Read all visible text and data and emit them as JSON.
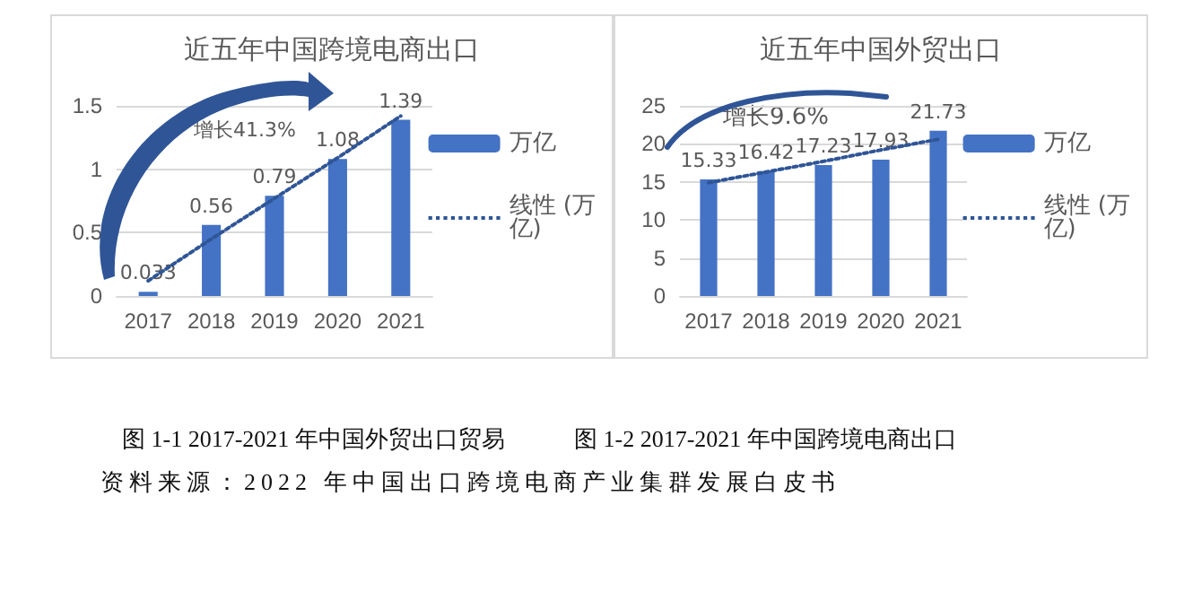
{
  "chart_data": [
    {
      "type": "bar",
      "title": "近五年中国跨境电商出口",
      "categories": [
        "2017",
        "2018",
        "2019",
        "2020",
        "2021"
      ],
      "series": [
        {
          "name": "万亿",
          "color": "#4472c4",
          "values": [
            0.033,
            0.56,
            0.79,
            1.08,
            1.39
          ],
          "value_labels": [
            "0.033",
            "0.56",
            "0.79",
            "1.08",
            "1.39"
          ]
        },
        {
          "name": "线性 (万亿)",
          "type": "line",
          "color": "#2f5597",
          "values": [
            0.12,
            0.45,
            0.77,
            1.09,
            1.42
          ],
          "line_style": "dotted",
          "marker": "none"
        }
      ],
      "ylim": [
        0,
        1.5
      ],
      "yticks": [
        0,
        0.5,
        1,
        1.5
      ],
      "grid": "y",
      "legend": "right",
      "annotations": [
        "增长41.3%",
        "图 1-1 2017-2021 年中国外贸出口贸易",
        "资料来源：2022 年中国出口跨境电商产业集群发展白皮书"
      ]
    },
    {
      "type": "bar",
      "title": "近五年中国外贸出口",
      "categories": [
        "2017",
        "2018",
        "2019",
        "2020",
        "2021"
      ],
      "series": [
        {
          "name": "万亿",
          "color": "#4472c4",
          "values": [
            15.33,
            16.42,
            17.23,
            17.93,
            21.73
          ],
          "value_labels": [
            "15.33",
            "16.42",
            "17.23",
            "17.93",
            "21.73"
          ]
        },
        {
          "name": "线性 (万亿)",
          "type": "line",
          "color": "#2f5597",
          "values": [
            14.9,
            16.3,
            17.7,
            19.2,
            20.6
          ],
          "line_style": "dotted",
          "marker": "none"
        }
      ],
      "ylim": [
        0,
        25
      ],
      "yticks": [
        0,
        5,
        10,
        15,
        20,
        25
      ],
      "grid": "y",
      "legend": "right",
      "annotations": [
        "增长9.6%",
        "图 1-2 2017-2021 年中国跨境电商出口"
      ]
    }
  ]
}
